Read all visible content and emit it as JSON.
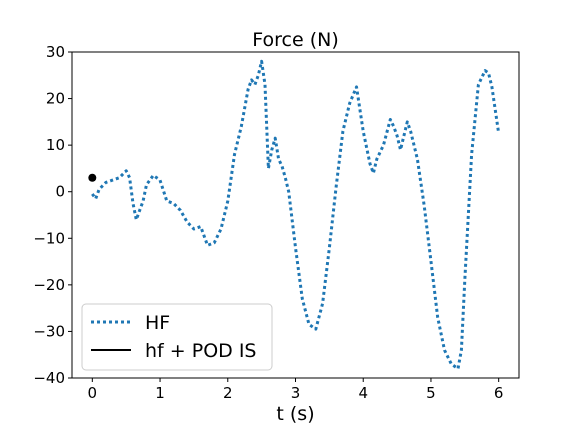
{
  "chart_data": {
    "type": "line",
    "title": "Force (N)",
    "xlabel": "t (s)",
    "ylabel": "",
    "xlim": [
      -0.3,
      6.3
    ],
    "ylim": [
      -40,
      30
    ],
    "xticks": [
      0,
      1,
      2,
      3,
      4,
      5,
      6
    ],
    "yticks": [
      -40,
      -30,
      -20,
      -10,
      0,
      10,
      20,
      30
    ],
    "xtick_labels": [
      "0",
      "1",
      "2",
      "3",
      "4",
      "5",
      "6"
    ],
    "ytick_labels": [
      "−40",
      "−30",
      "−20",
      "−10",
      "0",
      "10",
      "20",
      "30"
    ],
    "legend_position": "lower-left",
    "grid": false,
    "series": [
      {
        "name": "HF",
        "style": "dotted",
        "color": "#1f77b4",
        "x": [
          0.0,
          0.05,
          0.1,
          0.2,
          0.3,
          0.4,
          0.5,
          0.55,
          0.6,
          0.65,
          0.7,
          0.75,
          0.8,
          0.9,
          1.0,
          1.1,
          1.2,
          1.3,
          1.4,
          1.5,
          1.6,
          1.7,
          1.8,
          1.9,
          2.0,
          2.1,
          2.2,
          2.3,
          2.35,
          2.4,
          2.45,
          2.5,
          2.55,
          2.6,
          2.65,
          2.7,
          2.75,
          2.8,
          2.85,
          2.9,
          3.0,
          3.1,
          3.2,
          3.3,
          3.4,
          3.5,
          3.6,
          3.7,
          3.8,
          3.9,
          4.0,
          4.1,
          4.15,
          4.2,
          4.3,
          4.4,
          4.45,
          4.5,
          4.55,
          4.6,
          4.65,
          4.7,
          4.8,
          4.9,
          5.0,
          5.1,
          5.2,
          5.3,
          5.4,
          5.45,
          5.5,
          5.6,
          5.7,
          5.8,
          5.85,
          5.9,
          5.95,
          6.0
        ],
        "y": [
          -0.5,
          -1.5,
          0.5,
          2.0,
          2.5,
          3.0,
          4.5,
          3.0,
          -2.5,
          -6.0,
          -4.0,
          -2.0,
          1.5,
          3.5,
          2.5,
          -2.0,
          -2.5,
          -4.0,
          -6.5,
          -8.0,
          -7.5,
          -11.5,
          -11.0,
          -8.0,
          -2.0,
          8.0,
          14.0,
          22.0,
          24.0,
          23.0,
          25.0,
          28.0,
          23.0,
          5.0,
          9.0,
          11.5,
          7.0,
          5.5,
          3.0,
          0.0,
          -12.0,
          -23.0,
          -28.5,
          -29.5,
          -24.0,
          -12.0,
          1.0,
          13.0,
          19.0,
          22.5,
          13.0,
          6.0,
          4.0,
          7.0,
          10.0,
          15.5,
          14.0,
          12.0,
          9.0,
          12.0,
          15.0,
          13.0,
          7.0,
          -3.0,
          -15.0,
          -27.0,
          -34.0,
          -37.0,
          -38.0,
          -34.0,
          -19.0,
          8.0,
          23.0,
          26.0,
          25.5,
          22.5,
          17.5,
          12.5
        ]
      },
      {
        "name": "hf + POD IS",
        "style": "solid",
        "color": "#000000",
        "x": [
          0.0
        ],
        "y": [
          3.0
        ]
      }
    ]
  }
}
